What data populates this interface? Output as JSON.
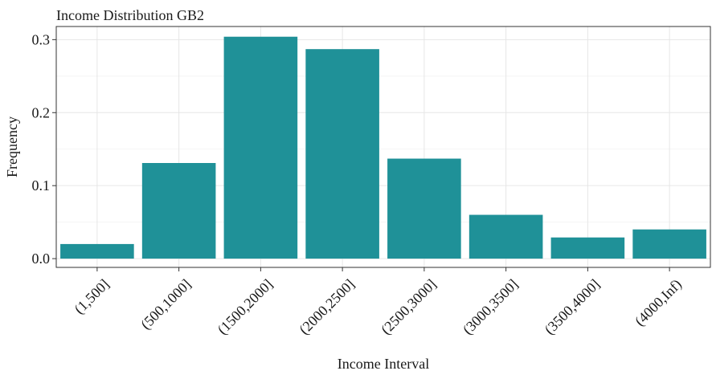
{
  "chart_data": {
    "type": "bar",
    "title": "Income Distribution GB2",
    "xlabel": "Income Interval",
    "ylabel": "Frequency",
    "categories": [
      "(1,500]",
      "(500,1000]",
      "(1500,2000]",
      "(2000,2500]",
      "(2500,3000]",
      "(3000,3500]",
      "(3500,4000]",
      "(4000,Inf)"
    ],
    "values": [
      0.02,
      0.131,
      0.304,
      0.287,
      0.137,
      0.06,
      0.029,
      0.04
    ],
    "ylim": [
      -0.012,
      0.318
    ],
    "yticks": [
      0.0,
      0.1,
      0.2,
      0.3
    ],
    "ytick_labels": [
      "0.0",
      "0.1",
      "0.2",
      "0.3"
    ],
    "bar_color": "#1f9198",
    "grid": true,
    "legend": "none"
  }
}
